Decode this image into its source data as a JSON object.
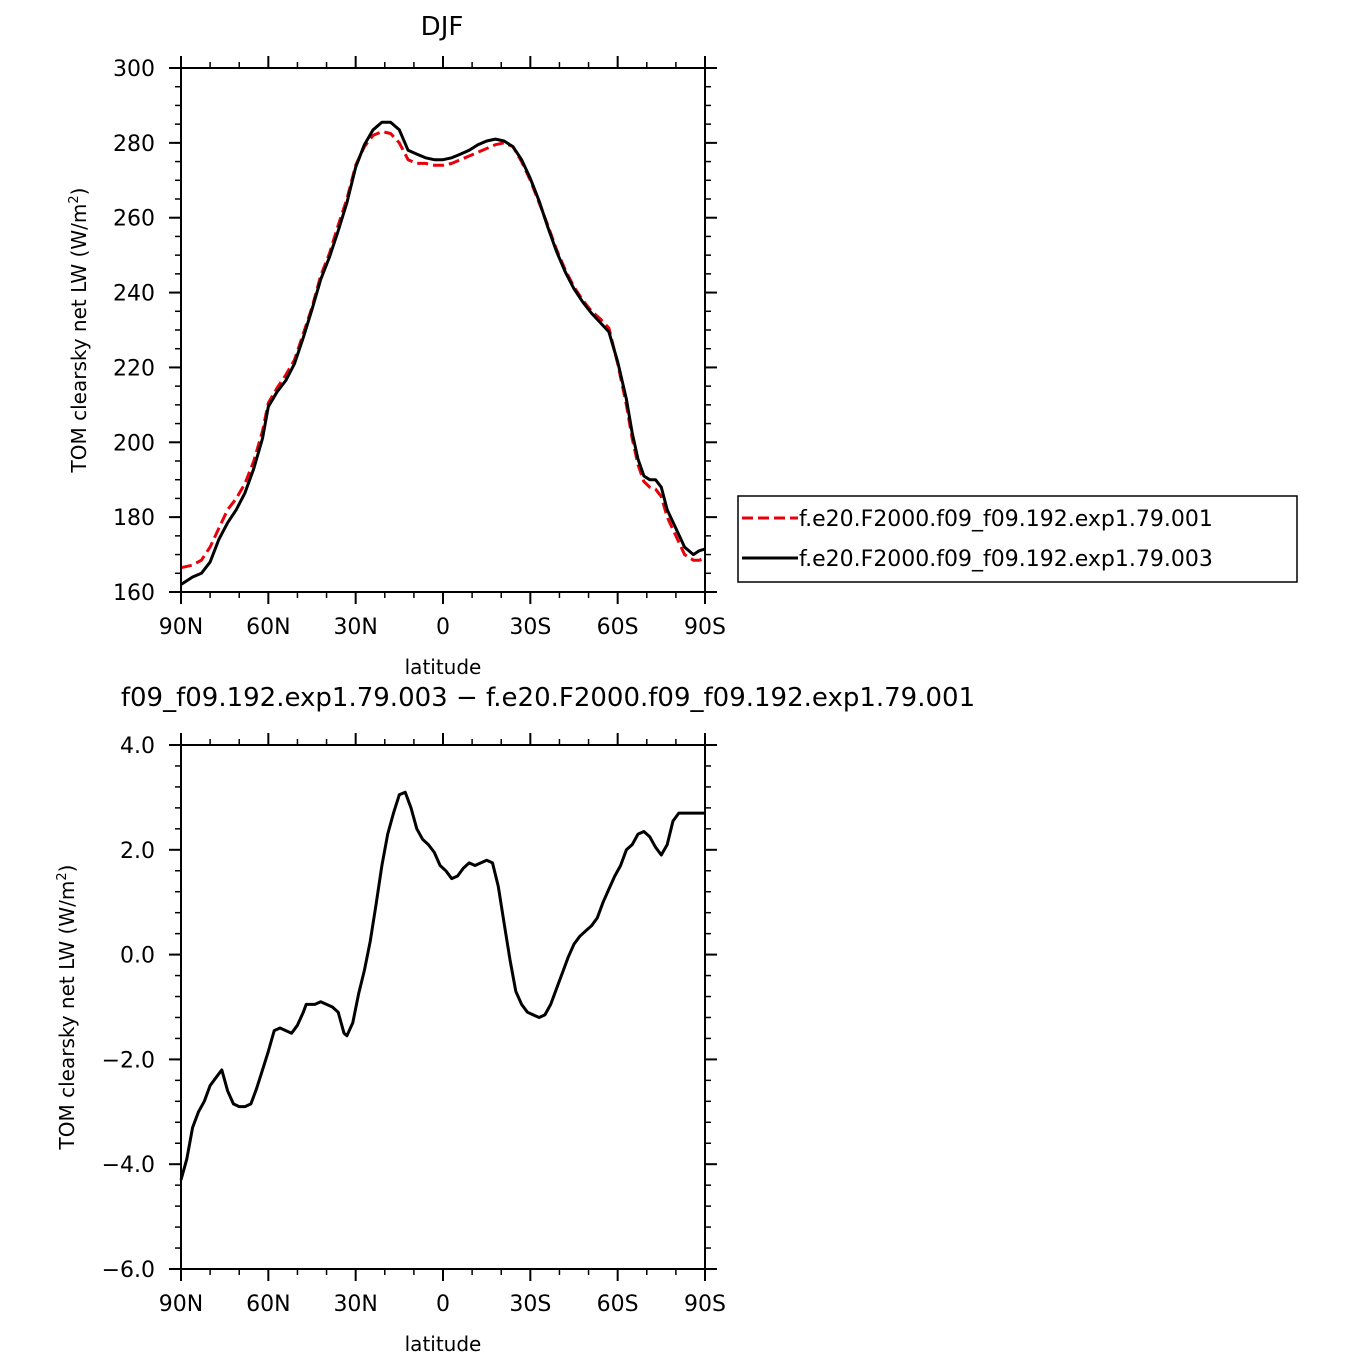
{
  "chart_data": [
    {
      "type": "line",
      "title": "DJF",
      "xlabel": "latitude",
      "ylabel": "TOM clearsky net LW (W/m",
      "ylabel_sup": "2",
      "ylabel_end": ")",
      "xlim": [
        -90,
        90
      ],
      "ylim": [
        160,
        300
      ],
      "xticks": [
        -90,
        -60,
        -30,
        0,
        30,
        60,
        90
      ],
      "xtick_labels": [
        "90N",
        "60N",
        "30N",
        "0",
        "30S",
        "60S",
        "90S"
      ],
      "yticks": [
        160,
        180,
        200,
        220,
        240,
        260,
        280,
        300
      ],
      "ytick_labels": [
        "160",
        "180",
        "200",
        "220",
        "240",
        "260",
        "280",
        "300"
      ],
      "legend_position": "right, outside plot",
      "series": [
        {
          "name": "f.e20.F2000.f09_f09.192.exp1.79.001",
          "color": "#e8000b",
          "dash": "dashed",
          "x": [
            -90,
            -86,
            -83,
            -80,
            -77,
            -74,
            -71,
            -68,
            -65,
            -62,
            -60,
            -57,
            -54,
            -51,
            -48,
            -45,
            -42,
            -39,
            -36,
            -33,
            -30,
            -27,
            -24,
            -21,
            -18,
            -15,
            -12,
            -9,
            -6,
            -3,
            0,
            3,
            6,
            9,
            12,
            15,
            18,
            21,
            24,
            27,
            30,
            33,
            36,
            39,
            42,
            45,
            48,
            51,
            54,
            57,
            60,
            63,
            65,
            67,
            69,
            71,
            73,
            75,
            77,
            80,
            83,
            86,
            88,
            90
          ],
          "values": [
            166.5,
            167.2,
            168.5,
            172,
            177,
            182,
            185,
            189,
            195,
            203,
            210.5,
            214.5,
            218,
            222,
            229,
            236,
            244.5,
            250.5,
            258,
            265,
            274,
            279,
            282,
            283,
            282.5,
            280,
            275.5,
            274.5,
            274.5,
            274,
            274,
            274.5,
            275.5,
            276.5,
            277.5,
            278.5,
            279.5,
            280,
            279,
            275,
            270,
            264,
            258,
            251.5,
            246,
            241.5,
            238,
            235,
            233,
            230.5,
            221,
            210,
            201,
            194,
            189.5,
            188,
            187.5,
            185.5,
            180,
            175,
            170,
            168.5,
            168.5,
            169
          ]
        },
        {
          "name": "f.e20.F2000.f09_f09.192.exp1.79.003",
          "color": "#000000",
          "dash": "solid",
          "x": [
            -90,
            -86,
            -83,
            -80,
            -77,
            -74,
            -71,
            -68,
            -65,
            -62,
            -60,
            -57,
            -54,
            -51,
            -48,
            -45,
            -42,
            -39,
            -36,
            -33,
            -30,
            -27,
            -24,
            -21,
            -18,
            -15,
            -12,
            -9,
            -6,
            -3,
            0,
            3,
            6,
            9,
            12,
            15,
            18,
            21,
            24,
            27,
            30,
            33,
            36,
            39,
            42,
            45,
            48,
            51,
            54,
            57,
            60,
            63,
            65,
            67,
            69,
            71,
            73,
            75,
            77,
            80,
            83,
            86,
            88,
            90
          ],
          "values": [
            162,
            164,
            165,
            168,
            174,
            178.5,
            182,
            186.5,
            193,
            201,
            209.5,
            213.5,
            216.5,
            221,
            228,
            235.5,
            243.5,
            249.5,
            256.5,
            264,
            273.5,
            279.5,
            283.5,
            285.5,
            285.5,
            283.5,
            278,
            277,
            276,
            275.5,
            275.5,
            276,
            277,
            278,
            279.5,
            280.5,
            281,
            280.5,
            279,
            275.5,
            270.5,
            264.5,
            257.5,
            251,
            245.5,
            241,
            237.5,
            234.5,
            232,
            229.5,
            221.5,
            211.5,
            202.5,
            195.5,
            191,
            190,
            190,
            188,
            182,
            177,
            172,
            170,
            171,
            171.5
          ]
        }
      ]
    },
    {
      "type": "line",
      "title": "f09_f09.192.exp1.79.003 − f.e20.F2000.f09_f09.192.exp1.79.001",
      "xlabel": "latitude",
      "ylabel": "TOM clearsky net LW (W/m",
      "ylabel_sup": "2",
      "ylabel_end": ")",
      "xlim": [
        -90,
        90
      ],
      "ylim": [
        -6.0,
        4.0
      ],
      "xticks": [
        -90,
        -60,
        -30,
        0,
        30,
        60,
        90
      ],
      "xtick_labels": [
        "90N",
        "60N",
        "30N",
        "0",
        "30S",
        "60S",
        "90S"
      ],
      "yticks": [
        -6,
        -4,
        -2,
        0,
        2,
        4
      ],
      "ytick_labels": [
        "−6.0",
        "−4.0",
        "−2.0",
        "0.0",
        "2.0",
        "4.0"
      ],
      "series": [
        {
          "color": "#000000",
          "dash": "solid",
          "x": [
            -90,
            -88,
            -86,
            -84,
            -82,
            -80,
            -78,
            -76,
            -74,
            -72,
            -70,
            -68,
            -66,
            -64,
            -62,
            -60,
            -58,
            -56,
            -54,
            -52,
            -50,
            -48,
            -47,
            -46,
            -44,
            -42,
            -40,
            -38,
            -36,
            -34,
            -33,
            -31,
            -29,
            -27,
            -25,
            -23,
            -21,
            -19,
            -17,
            -15,
            -13,
            -11,
            -9,
            -7,
            -5,
            -3,
            -1,
            1,
            3,
            5,
            7,
            9,
            11,
            13,
            15,
            17,
            19,
            21,
            23,
            25,
            27,
            29,
            31,
            33,
            35,
            37,
            39,
            41,
            43,
            45,
            47,
            49,
            51,
            53,
            55,
            57,
            59,
            61,
            63,
            65,
            67,
            69,
            71,
            73,
            75,
            77,
            79,
            81,
            83,
            85,
            87,
            89,
            90
          ],
          "values": [
            -4.3,
            -3.9,
            -3.3,
            -3.0,
            -2.8,
            -2.5,
            -2.35,
            -2.2,
            -2.6,
            -2.85,
            -2.9,
            -2.9,
            -2.85,
            -2.55,
            -2.2,
            -1.85,
            -1.45,
            -1.4,
            -1.45,
            -1.5,
            -1.35,
            -1.1,
            -0.95,
            -0.95,
            -0.95,
            -0.9,
            -0.95,
            -1.0,
            -1.1,
            -1.5,
            -1.55,
            -1.3,
            -0.75,
            -0.3,
            0.25,
            0.95,
            1.7,
            2.3,
            2.7,
            3.05,
            3.1,
            2.8,
            2.4,
            2.2,
            2.1,
            1.95,
            1.7,
            1.6,
            1.45,
            1.5,
            1.65,
            1.75,
            1.7,
            1.75,
            1.8,
            1.75,
            1.3,
            0.6,
            -0.1,
            -0.7,
            -0.95,
            -1.1,
            -1.15,
            -1.2,
            -1.15,
            -0.95,
            -0.65,
            -0.35,
            -0.05,
            0.2,
            0.35,
            0.45,
            0.55,
            0.7,
            1.0,
            1.25,
            1.5,
            1.7,
            2.0,
            2.1,
            2.3,
            2.35,
            2.25,
            2.05,
            1.9,
            2.1,
            2.55,
            2.7,
            2.7,
            2.7,
            2.7,
            2.7,
            2.7
          ]
        }
      ]
    }
  ]
}
